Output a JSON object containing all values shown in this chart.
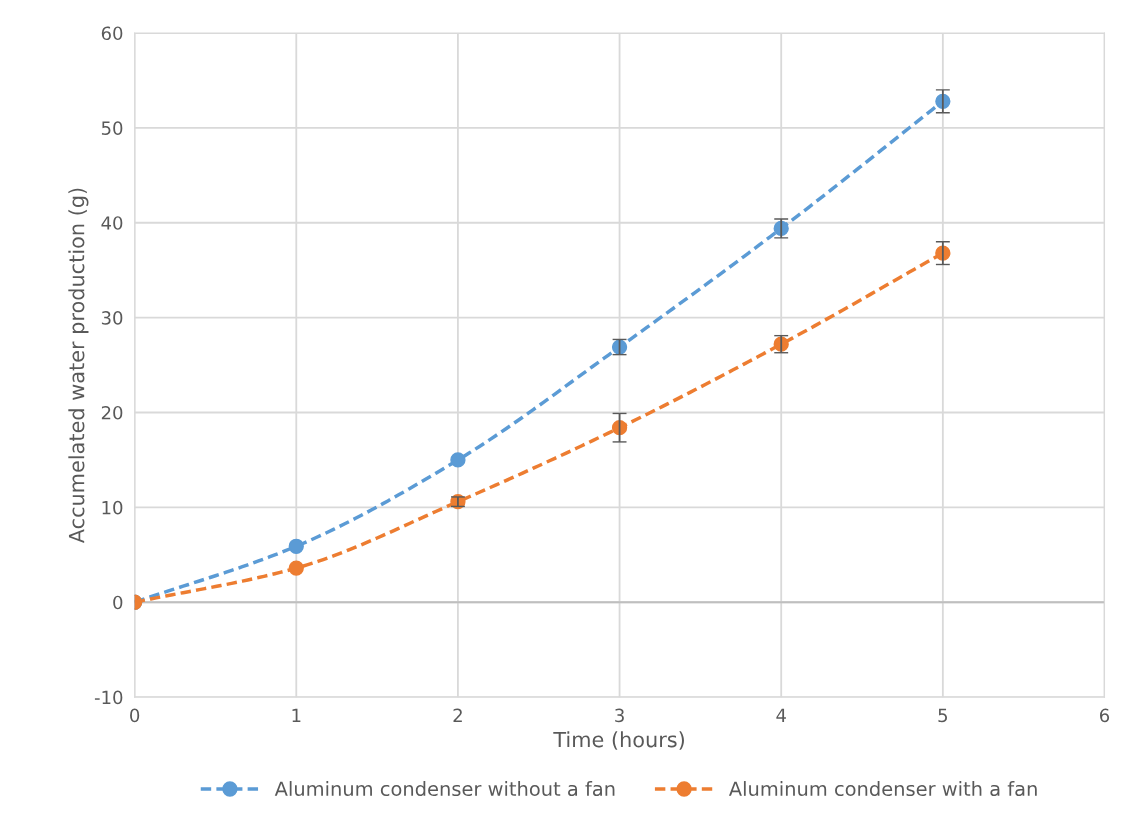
{
  "chart_data": {
    "type": "line",
    "xlabel": "Time (hours)",
    "ylabel": "Accumelated water production (g)",
    "x": [
      0,
      1,
      2,
      3,
      4,
      5
    ],
    "series": [
      {
        "name": "Aluminum condenser without a fan",
        "color": "#5b9bd5",
        "values": [
          0,
          5.9,
          15.0,
          26.9,
          39.4,
          52.8
        ],
        "errors": [
          null,
          null,
          null,
          0.8,
          1.0,
          1.2
        ]
      },
      {
        "name": "Aluminum condenser with a fan",
        "color": "#ed7d31",
        "values": [
          0,
          3.6,
          10.6,
          18.4,
          27.2,
          36.8
        ],
        "errors": [
          null,
          null,
          0.5,
          1.5,
          0.9,
          1.2
        ]
      }
    ],
    "xlim": [
      0,
      6
    ],
    "xticks": [
      0,
      1,
      2,
      3,
      4,
      5,
      6
    ],
    "ylim": [
      -10,
      60
    ],
    "yticks": [
      -10,
      0,
      10,
      20,
      30,
      40,
      50,
      60
    ],
    "grid": true,
    "legend": "bottom",
    "marker": "circle",
    "line_style": "dashed"
  }
}
